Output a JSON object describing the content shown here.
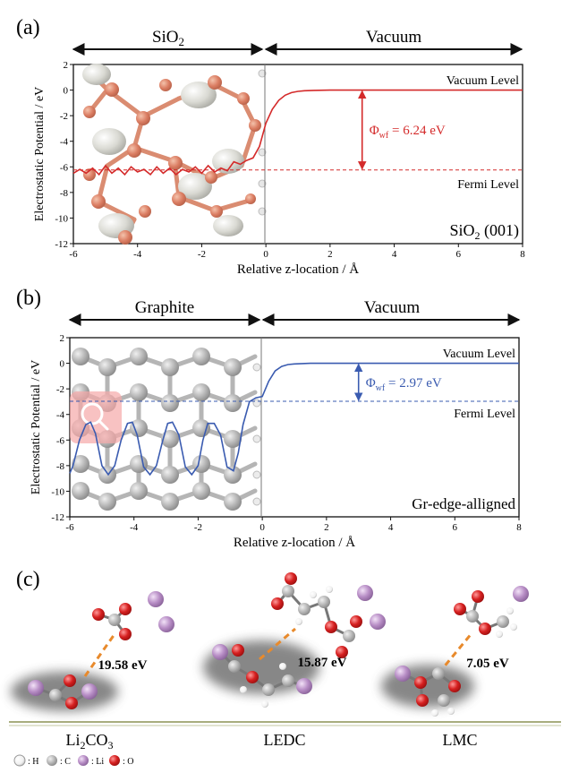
{
  "panel_labels": [
    "(a)",
    "(b)",
    "(c)"
  ],
  "chart_data": [
    {
      "type": "line",
      "panel": "(a)",
      "region_left": "SiO",
      "region_left_sub": "2",
      "region_right": "Vacuum",
      "xlabel": "Relative z-location / Å",
      "ylabel": "Electrostatic Potential / eV",
      "xlim": [
        -6,
        8
      ],
      "ylim": [
        -12,
        2
      ],
      "xticks": [
        "-6",
        "-4",
        "-2",
        "0",
        "2",
        "4",
        "6",
        "8"
      ],
      "yticks": [
        "2",
        "0",
        "-2",
        "-4",
        "-6",
        "-8",
        "-10",
        "-12"
      ],
      "vacuum_level": 0,
      "fermi_level": -6.24,
      "vacuum_label": "Vacuum Level",
      "fermi_label": "Fermi Level",
      "phi_symbol": "Φ",
      "phi_sub": "wf",
      "phi_value": " = 6.24 eV",
      "system_label": "SiO",
      "system_label_sub": "2",
      "system_label_tail": " (001)",
      "line_color": "#d42a2a",
      "series": [
        {
          "x": [
            -6.0,
            -5.8,
            -5.6,
            -5.4,
            -5.2,
            -5.0,
            -4.8,
            -4.6,
            -4.4,
            -4.2,
            -4.0,
            -3.8,
            -3.6,
            -3.4,
            -3.2,
            -3.0,
            -2.8,
            -2.6,
            -2.4,
            -2.2,
            -2.0,
            -1.8,
            -1.6,
            -1.4,
            -1.2,
            -1.0,
            -0.8,
            -0.6,
            -0.4,
            -0.2,
            0.0,
            0.2,
            0.4,
            0.6,
            0.8,
            1.0,
            1.2,
            1.5,
            2.0,
            3.0,
            4.0,
            6.0,
            8.0
          ],
          "y": [
            -6.5,
            -6.2,
            -6.5,
            -6.1,
            -6.6,
            -5.9,
            -6.5,
            -6.1,
            -6.6,
            -6.0,
            -6.4,
            -6.2,
            -6.6,
            -6.0,
            -6.5,
            -6.1,
            -6.6,
            -6.2,
            -6.4,
            -6.0,
            -6.5,
            -5.9,
            -6.4,
            -6.1,
            -6.3,
            -5.6,
            -5.8,
            -5.5,
            -5.3,
            -4.4,
            -2.6,
            -1.5,
            -0.8,
            -0.4,
            -0.2,
            -0.1,
            -0.05,
            -0.02,
            0.0,
            0.0,
            0.0,
            0.0,
            0.0
          ]
        }
      ]
    },
    {
      "type": "line",
      "panel": "(b)",
      "region_left": "Graphite",
      "region_right": "Vacuum",
      "xlabel": "Relative z-location / Å",
      "ylabel": "Electrostatic Potential / eV",
      "xlim": [
        -6,
        8
      ],
      "ylim": [
        -12,
        2
      ],
      "xticks": [
        "-6",
        "-4",
        "-2",
        "0",
        "2",
        "4",
        "6",
        "8"
      ],
      "yticks": [
        "2",
        "0",
        "-2",
        "-4",
        "-6",
        "-8",
        "-10",
        "-12"
      ],
      "vacuum_level": 0,
      "fermi_level": -2.97,
      "vacuum_label": "Vacuum Level",
      "fermi_label": "Fermi Level",
      "phi_symbol": "Φ",
      "phi_sub": "wf",
      "phi_value": " = 2.97 eV",
      "system_label": "Gr-edge-alligned",
      "line_color": "#3a5bb0",
      "series": [
        {
          "x": [
            -6.0,
            -5.9,
            -5.7,
            -5.5,
            -5.35,
            -5.2,
            -5.0,
            -4.8,
            -4.6,
            -4.4,
            -4.2,
            -4.05,
            -3.9,
            -3.7,
            -3.5,
            -3.3,
            -3.1,
            -2.95,
            -2.8,
            -2.6,
            -2.4,
            -2.2,
            -2.0,
            -1.85,
            -1.7,
            -1.5,
            -1.3,
            -1.1,
            -0.9,
            -0.75,
            -0.6,
            -0.4,
            -0.2,
            0.0,
            0.2,
            0.4,
            0.6,
            0.8,
            1.0,
            1.5,
            2.0,
            4.0,
            8.0
          ],
          "y": [
            -8.6,
            -8.0,
            -6.0,
            -4.8,
            -4.6,
            -5.5,
            -8.0,
            -8.7,
            -8.0,
            -6.0,
            -4.7,
            -4.6,
            -5.6,
            -8.1,
            -8.7,
            -8.0,
            -6.0,
            -4.7,
            -4.6,
            -5.6,
            -8.1,
            -8.7,
            -8.0,
            -6.0,
            -4.7,
            -4.7,
            -5.6,
            -8.1,
            -8.4,
            -7.0,
            -4.8,
            -3.0,
            -2.7,
            -2.6,
            -1.4,
            -0.6,
            -0.25,
            -0.1,
            -0.05,
            0.0,
            0.0,
            0.0,
            0.0
          ]
        }
      ]
    }
  ],
  "panel_c": {
    "energies": [
      "19.58 eV",
      "15.87 eV",
      "7.05 eV"
    ],
    "names": [
      {
        "main": "Li",
        "sub": "2",
        "tail": "CO",
        "sub2": "3"
      },
      {
        "main": "LEDC"
      },
      {
        "main": "LMC"
      }
    ],
    "legend": [
      {
        "label": ": H",
        "color": "#ffffff"
      },
      {
        "label": ": C",
        "color": "#8a8a8a"
      },
      {
        "label": ": Li",
        "color": "#b88ec6"
      },
      {
        "label": ": O",
        "color": "#d62020"
      }
    ],
    "bond_color": "#e88a2c",
    "floor_color": "#a8ad7e"
  }
}
